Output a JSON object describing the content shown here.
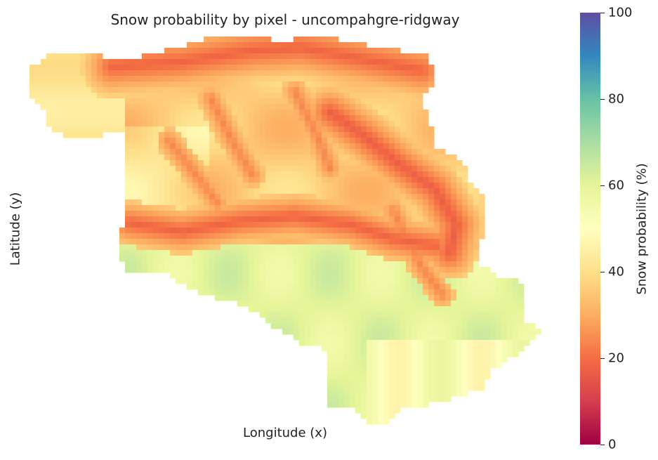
{
  "chart_data": {
    "type": "heatmap",
    "title": "Snow probability by pixel - uncompahgre-ridgway",
    "xlabel": "Longitude (x)",
    "ylabel": "Latitude (y)",
    "colorbar": {
      "label": "Snow probability (%)",
      "range": [
        0,
        100
      ],
      "ticks": [
        "0",
        "20",
        "40",
        "60",
        "80",
        "100"
      ],
      "colormap": "Spectral",
      "stops": [
        "#9e0142",
        "#d53e4f",
        "#f46d43",
        "#fdae61",
        "#fee08b",
        "#ffffbf",
        "#e6f598",
        "#abdda4",
        "#66c2a5",
        "#3288bd",
        "#5e4fa2"
      ]
    },
    "grid": false,
    "description_values": {
      "north_ridge_band": 18,
      "northeast_valley_band": 17,
      "middle_ridge_band": 18,
      "northwest_plateau": 42,
      "central_uplands": 36,
      "southern_lowlands": 60,
      "southeast_valley": 52
    }
  }
}
